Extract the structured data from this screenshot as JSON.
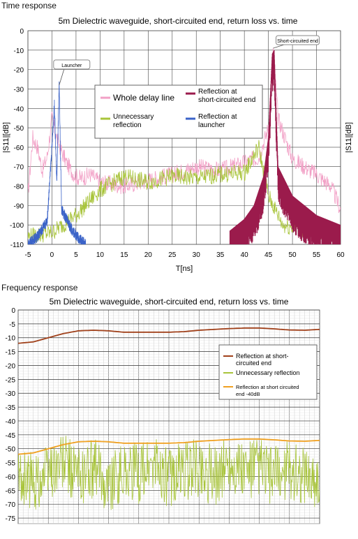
{
  "sections": {
    "time_title": "Time response",
    "freq_title": "Frequency response"
  },
  "chart_data": [
    {
      "type": "line",
      "title": "5m Dielectric waveguide, short-circuited end, return loss vs. time",
      "xlabel": "T[ns]",
      "ylabel": "|S11|[dB]",
      "ylabel_right": "|S11|[dB]",
      "xlim": [
        -5,
        60
      ],
      "ylim": [
        -110,
        0
      ],
      "x_ticks": [
        -5,
        0,
        5,
        10,
        15,
        20,
        25,
        30,
        35,
        40,
        45,
        50,
        55,
        60
      ],
      "y_ticks": [
        0,
        -10,
        -20,
        -30,
        -40,
        -50,
        -60,
        -70,
        -80,
        -90,
        -100,
        -110
      ],
      "grid": true,
      "legend_position": "center",
      "series": [
        {
          "name": "Whole delay line",
          "color": "#f2a0c6",
          "points": [
            [
              -5,
              -85
            ],
            [
              -4,
              -55
            ],
            [
              -3,
              -60
            ],
            [
              -2,
              -72
            ],
            [
              -1,
              -65
            ],
            [
              0,
              -45
            ],
            [
              1,
              -55
            ],
            [
              2,
              -62
            ],
            [
              3,
              -68
            ],
            [
              4,
              -72
            ],
            [
              5,
              -75
            ],
            [
              6,
              -76
            ],
            [
              8,
              -74
            ],
            [
              10,
              -78
            ],
            [
              15,
              -80
            ],
            [
              20,
              -77
            ],
            [
              25,
              -74
            ],
            [
              30,
              -70
            ],
            [
              35,
              -72
            ],
            [
              40,
              -68
            ],
            [
              43,
              -65
            ],
            [
              45,
              -50
            ],
            [
              46,
              -9
            ],
            [
              47,
              -45
            ],
            [
              50,
              -66
            ],
            [
              55,
              -74
            ],
            [
              58,
              -80
            ],
            [
              60,
              -92
            ]
          ]
        },
        {
          "name": "Reflection at short-circuited end",
          "color": "#9b1b4c",
          "points": [
            [
              37,
              -103
            ],
            [
              40,
              -97
            ],
            [
              42,
              -90
            ],
            [
              44,
              -75
            ],
            [
              45,
              -55
            ],
            [
              45.8,
              -12
            ],
            [
              46.2,
              -10
            ],
            [
              47,
              -70
            ],
            [
              50,
              -85
            ],
            [
              55,
              -95
            ],
            [
              60,
              -100
            ]
          ]
        },
        {
          "name": "Unnecessary reflection",
          "color": "#a8c43a",
          "points": [
            [
              -5,
              -106
            ],
            [
              0,
              -104
            ],
            [
              5,
              -95
            ],
            [
              10,
              -82
            ],
            [
              15,
              -75
            ],
            [
              20,
              -78
            ],
            [
              25,
              -75
            ],
            [
              30,
              -76
            ],
            [
              35,
              -74
            ],
            [
              40,
              -73
            ],
            [
              43,
              -60
            ],
            [
              45,
              -85
            ],
            [
              48,
              -100
            ],
            [
              52,
              -102
            ],
            [
              56,
              -104
            ],
            [
              60,
              -106
            ]
          ]
        },
        {
          "name": "Reflection at launcher",
          "color": "#3b63c8",
          "points": [
            [
              -5,
              -110
            ],
            [
              -3,
              -106
            ],
            [
              -1,
              -98
            ],
            [
              0,
              -60
            ],
            [
              0.5,
              -38
            ],
            [
              1,
              -78
            ],
            [
              1.5,
              -28
            ],
            [
              2,
              -92
            ],
            [
              4,
              -102
            ],
            [
              6,
              -108
            ],
            [
              7,
              -110
            ]
          ]
        }
      ],
      "annotations": [
        {
          "text": "Launcher",
          "x": 1.5,
          "y": -28
        },
        {
          "text": "Short-circuited end",
          "x": 46,
          "y": -9
        }
      ]
    },
    {
      "type": "line",
      "title": "5m Dielectric waveguide, short-circuited end, return loss vs. time",
      "xlabel": "",
      "ylabel": "",
      "ylim": [
        -77,
        0
      ],
      "y_ticks": [
        0,
        -5,
        -10,
        -15,
        -20,
        -25,
        -30,
        -35,
        -40,
        -45,
        -50,
        -55,
        -60,
        -65,
        -70,
        -75
      ],
      "grid": true,
      "legend_position": "right",
      "series": [
        {
          "name": "Reflection at short-circuited end",
          "color": "#a0401a",
          "x": [
            0,
            0.05,
            0.1,
            0.15,
            0.2,
            0.25,
            0.3,
            0.35,
            0.4,
            0.45,
            0.5,
            0.55,
            0.6,
            0.65,
            0.7,
            0.75,
            0.8,
            0.85,
            0.9,
            0.95,
            1.0
          ],
          "values": [
            -12,
            -11.5,
            -10,
            -8.5,
            -7.5,
            -7.3,
            -7.5,
            -8,
            -8,
            -8,
            -8,
            -7.8,
            -7.3,
            -7,
            -6.7,
            -6.5,
            -6.5,
            -6.8,
            -7.2,
            -7.3,
            -7
          ]
        },
        {
          "name": "Unnecessary reflection",
          "color": "#a8c43a",
          "x": [
            0,
            0.05,
            0.1,
            0.15,
            0.2,
            0.25,
            0.3,
            0.35,
            0.4,
            0.45,
            0.5,
            0.55,
            0.6,
            0.65,
            0.7,
            0.75,
            0.8,
            0.85,
            0.9,
            0.95,
            1.0
          ],
          "values": [
            -60,
            -62,
            -58,
            -55,
            -60,
            -57,
            -62,
            -58,
            -59,
            -56,
            -61,
            -58,
            -57,
            -60,
            -55,
            -59,
            -57,
            -60,
            -58,
            -59,
            -61
          ]
        },
        {
          "name": "Reflection at short circuited end -40dB",
          "color": "#f0a020",
          "x": [
            0,
            0.05,
            0.1,
            0.15,
            0.2,
            0.25,
            0.3,
            0.35,
            0.4,
            0.45,
            0.5,
            0.55,
            0.6,
            0.65,
            0.7,
            0.75,
            0.8,
            0.85,
            0.9,
            0.95,
            1.0
          ],
          "values": [
            -52,
            -51.5,
            -50,
            -48.5,
            -47.5,
            -47.3,
            -47.5,
            -48,
            -48,
            -48,
            -48,
            -47.8,
            -47.3,
            -47,
            -46.7,
            -46.5,
            -46.5,
            -46.8,
            -47.2,
            -47.3,
            -47
          ]
        }
      ]
    }
  ]
}
